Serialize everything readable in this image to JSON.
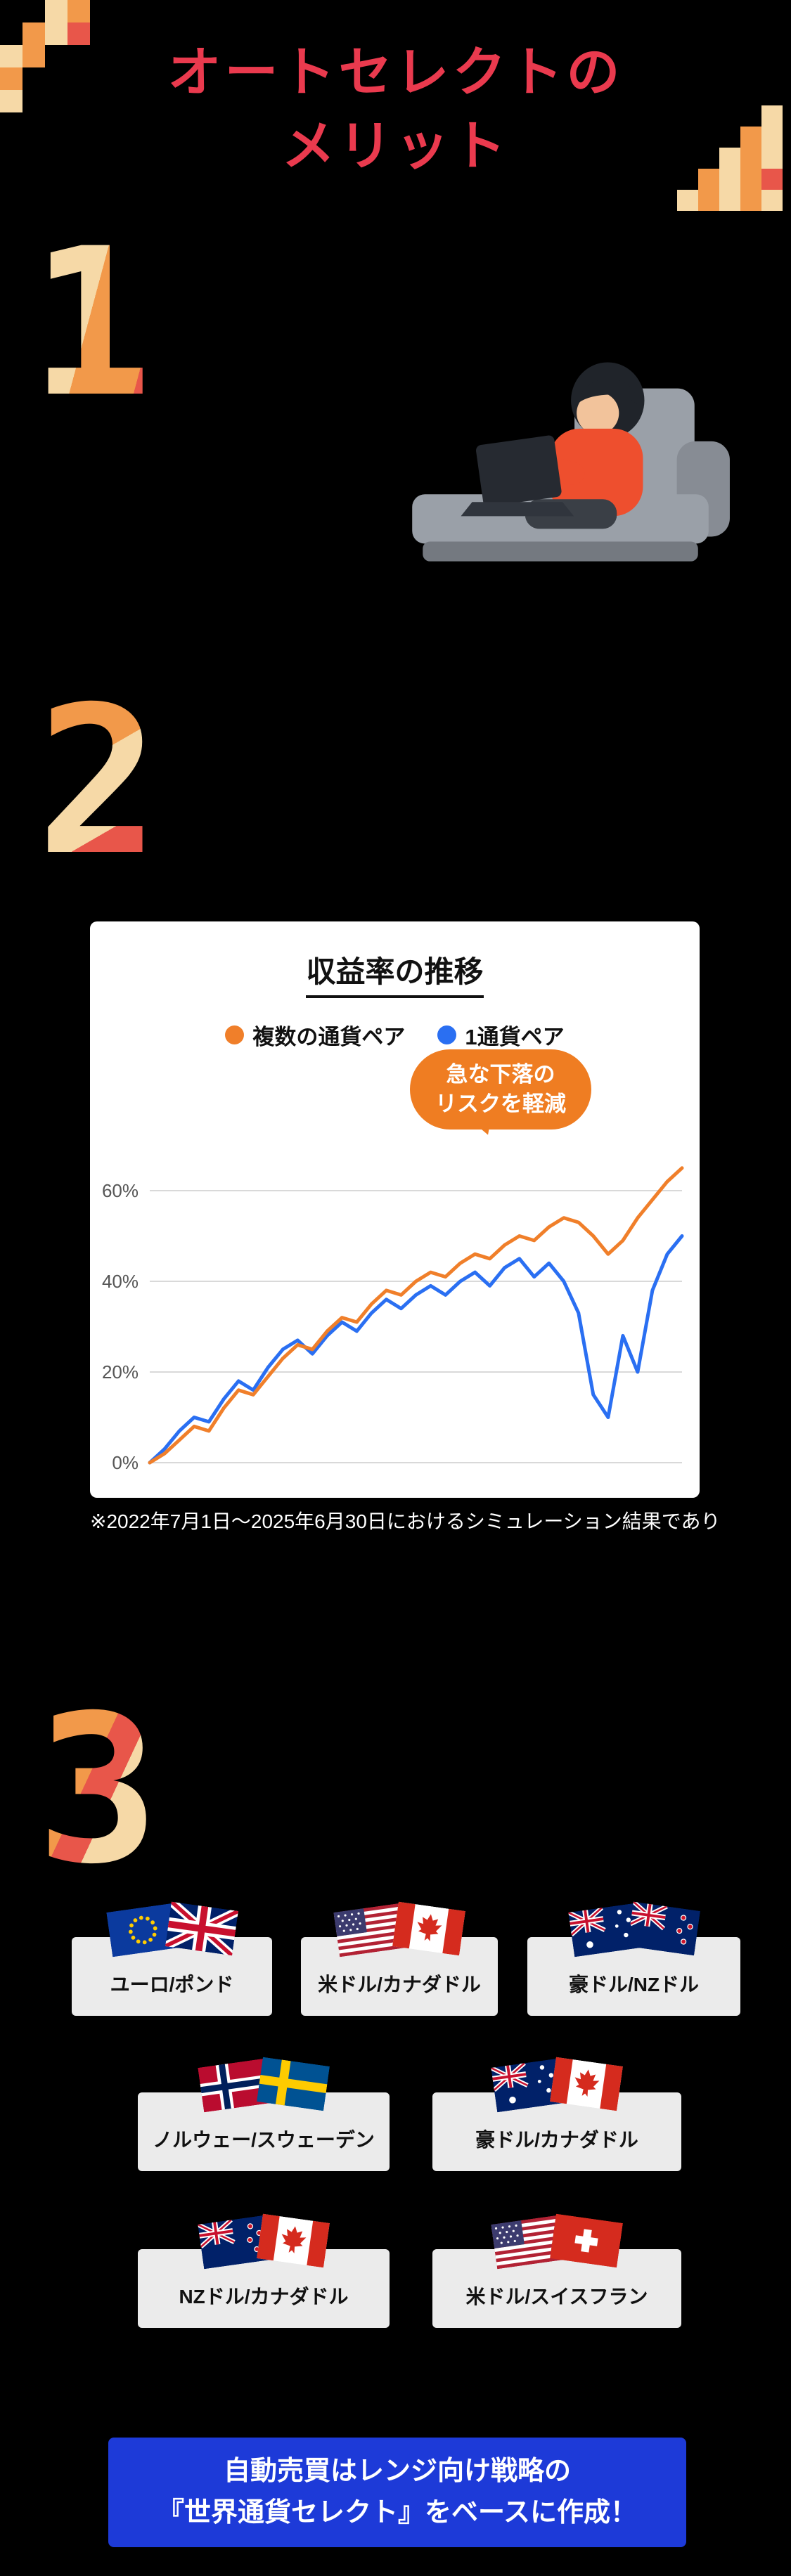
{
  "header": {
    "title_line1": "オートセレクトの",
    "title_line2": "メリット"
  },
  "sections": {
    "one": {
      "number": "1"
    },
    "two": {
      "number": "2"
    },
    "three": {
      "number": "3"
    }
  },
  "chart_card": {
    "title": "収益率の推移",
    "legend": [
      {
        "label": "複数の通貨ペア",
        "color": "#f07f2a"
      },
      {
        "label": "1通貨ペア",
        "color": "#2a6ff2"
      }
    ],
    "callout_line1": "急な下落の",
    "callout_line2": "リスクを軽減",
    "footnote": "※2022年7月1日～2025年6月30日におけるシミュレーション結果であり"
  },
  "chart_data": {
    "type": "line",
    "title": "収益率の推移",
    "x_range_note": "2022年7月1日～2025年6月30日",
    "ylim": [
      0,
      72
    ],
    "ytick_values": [
      0,
      20,
      40,
      60
    ],
    "ytick_labels": [
      "0%",
      "20%",
      "40%",
      "60%"
    ],
    "grid": true,
    "legend_position": "top",
    "annotation": "急な下落のリスクを軽減",
    "series": [
      {
        "name": "複数の通貨ペア",
        "color": "#f07f2a",
        "values": [
          0,
          2,
          5,
          8,
          7,
          12,
          16,
          15,
          19,
          23,
          26,
          25,
          29,
          32,
          31,
          35,
          38,
          37,
          40,
          42,
          41,
          44,
          46,
          45,
          48,
          50,
          49,
          52,
          54,
          53,
          50,
          46,
          49,
          54,
          58,
          62,
          65
        ]
      },
      {
        "name": "1通貨ペア",
        "color": "#2a6ff2",
        "values": [
          0,
          3,
          7,
          10,
          9,
          14,
          18,
          16,
          21,
          25,
          27,
          24,
          28,
          31,
          29,
          33,
          36,
          34,
          37,
          39,
          37,
          40,
          42,
          39,
          43,
          45,
          41,
          44,
          40,
          33,
          15,
          10,
          28,
          20,
          38,
          46,
          50
        ]
      }
    ]
  },
  "currency_pairs": {
    "rows": [
      [
        {
          "label": "ユーロ/ポンド",
          "flags": [
            "eu",
            "gb"
          ]
        },
        {
          "label": "米ドル/カナダドル",
          "flags": [
            "us",
            "ca"
          ]
        },
        {
          "label": "豪ドル/NZドル",
          "flags": [
            "au",
            "nz"
          ]
        }
      ],
      [
        {
          "label": "ノルウェー/スウェーデン",
          "flags": [
            "no",
            "se"
          ]
        },
        {
          "label": "豪ドル/カナダドル",
          "flags": [
            "au",
            "ca"
          ]
        }
      ],
      [
        {
          "label": "NZドル/カナダドル",
          "flags": [
            "nz",
            "ca"
          ]
        },
        {
          "label": "米ドル/スイスフラン",
          "flags": [
            "us",
            "ch"
          ]
        }
      ]
    ]
  },
  "banner": {
    "line1": "自動売買はレンジ向け戦略の",
    "line2": "『世界通貨セレクト』をベースに作成！"
  },
  "colors": {
    "background": "#000000",
    "title_red": "#ea3a4e",
    "pixel_orange": "#f2994a",
    "pixel_cream": "#f6d9a7",
    "pixel_red": "#e8564a",
    "chart_orange": "#f07f2a",
    "chart_blue": "#2a6ff2",
    "callout_orange": "#ef7d22",
    "card_gray": "#ebebeb",
    "banner_blue": "#1d3ad8"
  }
}
